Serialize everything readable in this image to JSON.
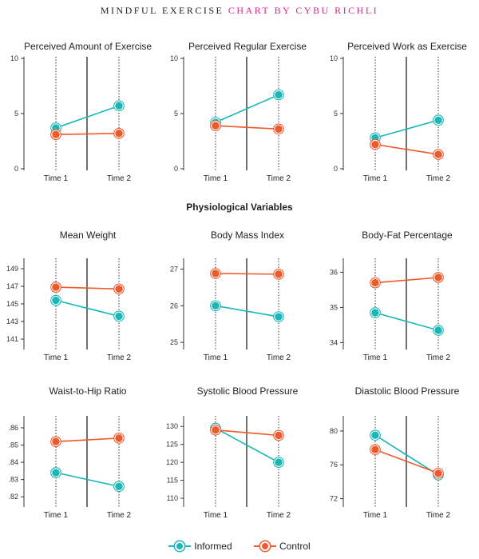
{
  "header": {
    "title_part1": "MINDFUL EXERCISE",
    "title_part2": "CHART BY CYBU RICHLI"
  },
  "section_title": "Physiological Variables",
  "colors": {
    "informed": "#1bb7b7",
    "control": "#ee5a2c",
    "accent": "#e0218a"
  },
  "legend": [
    {
      "name": "Informed",
      "color": "#1bb7b7",
      "icon": "legend-informed-icon"
    },
    {
      "name": "Control",
      "color": "#ee5a2c",
      "icon": "legend-control-icon"
    }
  ],
  "chart_data": [
    {
      "type": "line",
      "title": "Perceived Amount of Exercise",
      "categories": [
        "Time 1",
        "Time 2"
      ],
      "yticks": [
        "0",
        "5",
        "10"
      ],
      "ytick_values": [
        0,
        5,
        10
      ],
      "ylim": [
        0,
        10
      ],
      "series": [
        {
          "name": "Informed",
          "values": [
            3.7,
            5.7
          ]
        },
        {
          "name": "Control",
          "values": [
            3.1,
            3.2
          ]
        }
      ]
    },
    {
      "type": "line",
      "title": "Perceived Regular Exercise",
      "categories": [
        "Time 1",
        "Time 2"
      ],
      "yticks": [
        "0",
        "5",
        "10"
      ],
      "ytick_values": [
        0,
        5,
        10
      ],
      "ylim": [
        0,
        10
      ],
      "series": [
        {
          "name": "Informed",
          "values": [
            4.2,
            6.7
          ]
        },
        {
          "name": "Control",
          "values": [
            3.9,
            3.6
          ]
        }
      ]
    },
    {
      "type": "line",
      "title": "Perceived Work as Exercise",
      "categories": [
        "Time 1",
        "Time 2"
      ],
      "yticks": [
        "0",
        "5",
        "10"
      ],
      "ytick_values": [
        0,
        5,
        10
      ],
      "ylim": [
        0,
        10
      ],
      "series": [
        {
          "name": "Informed",
          "values": [
            2.8,
            4.4
          ]
        },
        {
          "name": "Control",
          "values": [
            2.2,
            1.3
          ]
        }
      ]
    },
    {
      "type": "line",
      "title": "Mean Weight",
      "categories": [
        "Time 1",
        "Time 2"
      ],
      "yticks": [
        "141",
        "143",
        "145",
        "147",
        "149"
      ],
      "ytick_values": [
        141,
        143,
        145,
        147,
        149
      ],
      "ylim": [
        140,
        150
      ],
      "series": [
        {
          "name": "Informed",
          "values": [
            145.4,
            143.6
          ]
        },
        {
          "name": "Control",
          "values": [
            146.9,
            146.7
          ]
        }
      ]
    },
    {
      "type": "line",
      "title": "Body Mass Index",
      "categories": [
        "Time 1",
        "Time 2"
      ],
      "yticks": [
        "25",
        "26",
        "27"
      ],
      "ytick_values": [
        25,
        26,
        27
      ],
      "ylim": [
        24.85,
        27.25
      ],
      "series": [
        {
          "name": "Informed",
          "values": [
            26.0,
            25.7
          ]
        },
        {
          "name": "Control",
          "values": [
            26.88,
            26.86
          ]
        }
      ]
    },
    {
      "type": "line",
      "title": "Body-Fat Percentage",
      "categories": [
        "Time 1",
        "Time 2"
      ],
      "yticks": [
        "34",
        "35",
        "36"
      ],
      "ytick_values": [
        34,
        35,
        36
      ],
      "ylim": [
        33.85,
        36.35
      ],
      "series": [
        {
          "name": "Informed",
          "values": [
            34.85,
            34.35
          ]
        },
        {
          "name": "Control",
          "values": [
            35.7,
            35.85
          ]
        }
      ]
    },
    {
      "type": "line",
      "title": "Waist-to-Hip Ratio",
      "categories": [
        "Time 1",
        "Time 2"
      ],
      "yticks": [
        ".82",
        ".83",
        ".84",
        ".85",
        ".86"
      ],
      "ytick_values": [
        0.82,
        0.83,
        0.84,
        0.85,
        0.86
      ],
      "ylim": [
        0.815,
        0.866
      ],
      "series": [
        {
          "name": "Informed",
          "values": [
            0.834,
            0.826
          ]
        },
        {
          "name": "Control",
          "values": [
            0.852,
            0.854
          ]
        }
      ]
    },
    {
      "type": "line",
      "title": "Systolic Blood Pressure",
      "categories": [
        "Time 1",
        "Time 2"
      ],
      "yticks": [
        "110",
        "115",
        "120",
        "125",
        "130"
      ],
      "ytick_values": [
        110,
        115,
        120,
        125,
        130
      ],
      "ylim": [
        108,
        132.5
      ],
      "series": [
        {
          "name": "Informed",
          "values": [
            129.5,
            120
          ]
        },
        {
          "name": "Control",
          "values": [
            129,
            127.5
          ]
        }
      ]
    },
    {
      "type": "line",
      "title": "Diastolic Blood Pressure",
      "categories": [
        "Time 1",
        "Time 2"
      ],
      "yticks": [
        "72",
        "76",
        "80"
      ],
      "ytick_values": [
        72,
        76,
        80
      ],
      "ylim": [
        71.2,
        81.6
      ],
      "series": [
        {
          "name": "Informed",
          "values": [
            79.5,
            74.8
          ]
        },
        {
          "name": "Control",
          "values": [
            77.8,
            75
          ]
        }
      ]
    }
  ]
}
